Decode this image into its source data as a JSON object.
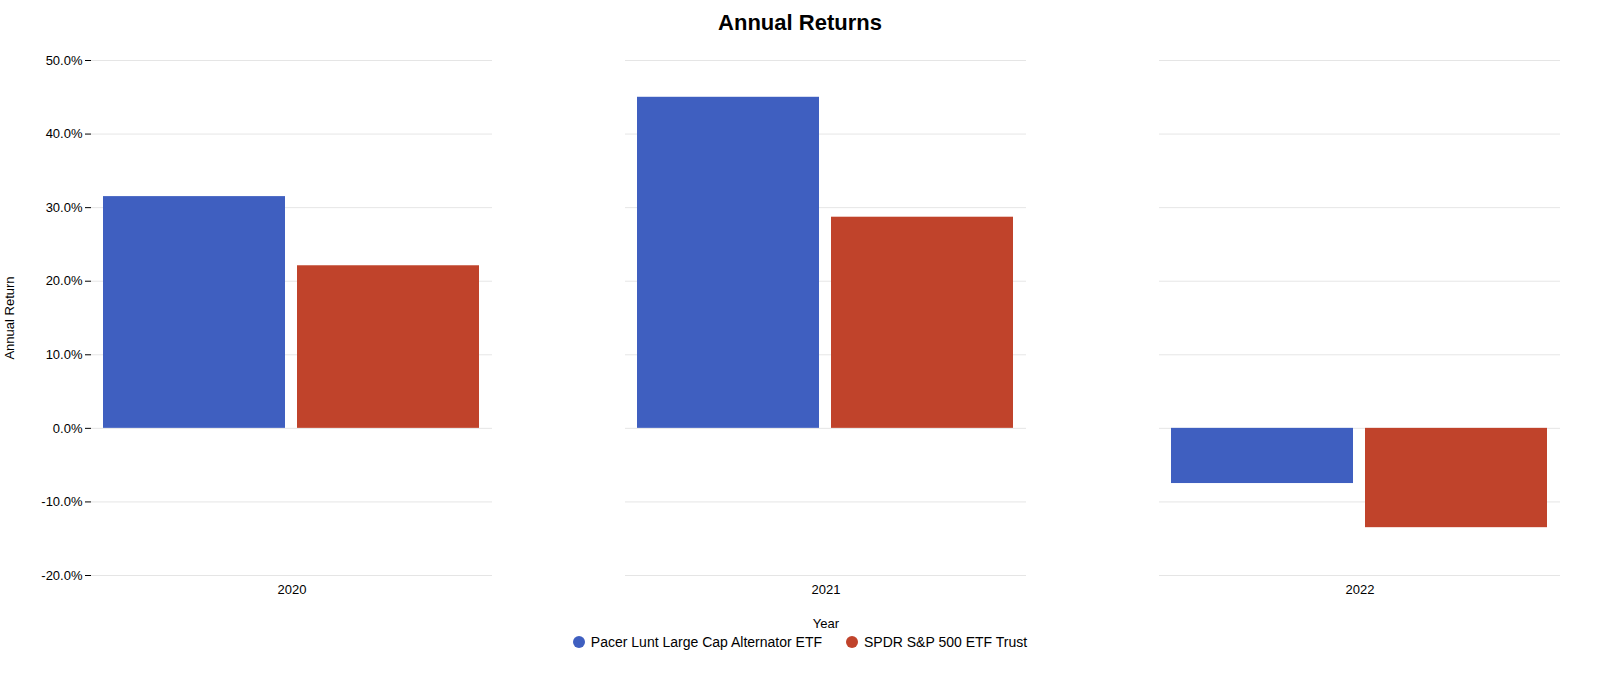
{
  "chart_data": {
    "type": "bar",
    "title": "Annual Returns",
    "xlabel": "Year",
    "ylabel": "Annual Return",
    "categories": [
      "2020",
      "2021",
      "2022"
    ],
    "series": [
      {
        "name": "Pacer Lunt Large Cap Alternator ETF",
        "color": "#3F5FC0",
        "values": [
          0.315,
          0.45,
          -0.075
        ]
      },
      {
        "name": "SPDR S&P 500 ETF Trust",
        "color": "#C0432B",
        "values": [
          0.221,
          0.287,
          -0.135
        ]
      }
    ],
    "ylim": [
      -0.2,
      0.5
    ],
    "yticks": [
      {
        "value": -0.2,
        "label": "-20.0%"
      },
      {
        "value": -0.1,
        "label": "-10.0%"
      },
      {
        "value": 0.0,
        "label": "0.0%"
      },
      {
        "value": 0.1,
        "label": "10.0%"
      },
      {
        "value": 0.2,
        "label": "20.0%"
      },
      {
        "value": 0.3,
        "label": "30.0%"
      },
      {
        "value": 0.4,
        "label": "40.0%"
      },
      {
        "value": 0.5,
        "label": "50.0%"
      }
    ],
    "grid": true,
    "legend": "bottom"
  }
}
